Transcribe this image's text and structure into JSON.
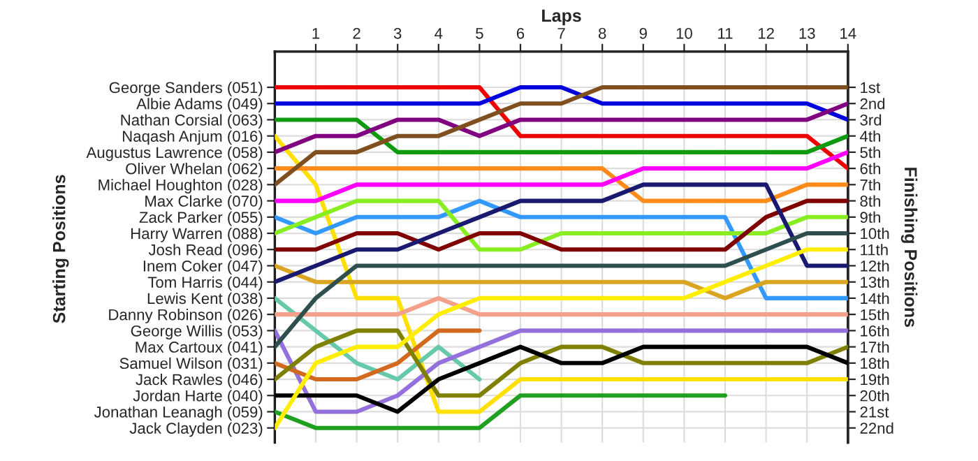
{
  "chart_data": {
    "type": "line",
    "xlabel": "Laps",
    "annotations": [
      "Starting Positions"
    ],
    "y2label": "Finishing Positions",
    "x": [
      0,
      1,
      2,
      3,
      4,
      5,
      6,
      7,
      8,
      9,
      10,
      11,
      12,
      13,
      14
    ],
    "xlim": [
      0,
      14
    ],
    "xticks": [
      1,
      2,
      3,
      4,
      5,
      6,
      7,
      8,
      9,
      10,
      11,
      12,
      13,
      14
    ],
    "y_categories": [
      "George Sanders (051)",
      "Albie Adams (049)",
      "Nathan Corsial (063)",
      "Naqash Anjum (016)",
      "Augustus Lawrence (058)",
      "Oliver Whelan (062)",
      "Michael Houghton (028)",
      "Max Clarke (070)",
      "Zack Parker (055)",
      "Harry Warren (088)",
      "Josh Read (096)",
      "Inem Coker (047)",
      "Tom Harris (044)",
      "Lewis Kent (038)",
      "Danny Robinson (026)",
      "George Willis (053)",
      "Max Cartoux (041)",
      "Samuel Wilson (031)",
      "Jack Rawles (046)",
      "Jordan Harte (040)",
      "Jonathan Leanagh (059)",
      "Jack Clayden (023)"
    ],
    "y2lim": [
      22.9,
      -1.2
    ],
    "y2ticks": [
      {
        "value": 1,
        "label": "1st"
      },
      {
        "value": 2,
        "label": "2nd"
      },
      {
        "value": 3,
        "label": "3rd"
      },
      {
        "value": 4,
        "label": "4th"
      },
      {
        "value": 5,
        "label": "5th"
      },
      {
        "value": 6,
        "label": "6th"
      },
      {
        "value": 7,
        "label": "7th"
      },
      {
        "value": 8,
        "label": "8th"
      },
      {
        "value": 9,
        "label": "9th"
      },
      {
        "value": 10,
        "label": "10th"
      },
      {
        "value": 11,
        "label": "11th"
      },
      {
        "value": 12,
        "label": "12th"
      },
      {
        "value": 13,
        "label": "13th"
      },
      {
        "value": 14,
        "label": "14th"
      },
      {
        "value": 15,
        "label": "15th"
      },
      {
        "value": 16,
        "label": "16th"
      },
      {
        "value": 17,
        "label": "17th"
      },
      {
        "value": 18,
        "label": "18th"
      },
      {
        "value": 19,
        "label": "19th"
      },
      {
        "value": 20,
        "label": "20th"
      },
      {
        "value": 21,
        "label": "21st"
      },
      {
        "value": 22,
        "label": "22nd"
      }
    ],
    "grid": true,
    "marker": "none",
    "line_style": "solid",
    "series": [
      {
        "axis": "y2",
        "color": "#ee0000",
        "values": [
          1,
          1,
          1,
          1,
          1,
          1,
          4,
          4,
          4,
          4,
          4,
          4,
          4,
          4,
          6
        ]
      },
      {
        "axis": "y2",
        "color": "#0000dd",
        "values": [
          2,
          2,
          2,
          2,
          2,
          2,
          1,
          1,
          2,
          2,
          2,
          2,
          2,
          2,
          3
        ]
      },
      {
        "axis": "y2",
        "color": "#109a10",
        "values": [
          3,
          3,
          3,
          5,
          5,
          5,
          5,
          5,
          5,
          5,
          5,
          5,
          5,
          5,
          4
        ]
      },
      {
        "axis": "y2",
        "color": "#ffe000",
        "values": [
          4,
          7,
          14,
          14,
          21,
          21,
          19,
          19,
          19,
          19,
          19,
          19,
          19,
          19,
          19
        ]
      },
      {
        "axis": "y2",
        "color": "#800080",
        "values": [
          5,
          4,
          4,
          3,
          3,
          4,
          3,
          3,
          3,
          3,
          3,
          3,
          3,
          3,
          2
        ]
      },
      {
        "axis": "y2",
        "color": "#ff8c1a",
        "values": [
          6,
          6,
          6,
          6,
          6,
          6,
          6,
          6,
          6,
          8,
          8,
          8,
          8,
          7,
          7
        ]
      },
      {
        "axis": "y2",
        "color": "#7f4f1f",
        "values": [
          7,
          5,
          5,
          4,
          4,
          3,
          2,
          2,
          1,
          1,
          1,
          1,
          1,
          1,
          1
        ]
      },
      {
        "axis": "y2",
        "color": "#ff00ff",
        "values": [
          8,
          8,
          7,
          7,
          7,
          7,
          7,
          7,
          7,
          6,
          6,
          6,
          6,
          6,
          5
        ]
      },
      {
        "axis": "y2",
        "color": "#3399ff",
        "values": [
          9,
          10,
          9,
          9,
          9,
          8,
          9,
          9,
          9,
          9,
          9,
          9,
          14,
          14,
          14
        ]
      },
      {
        "axis": "y2",
        "color": "#88ee22",
        "values": [
          10,
          9,
          8,
          8,
          8,
          11,
          11,
          10,
          10,
          10,
          10,
          10,
          10,
          9,
          9
        ]
      },
      {
        "axis": "y2",
        "color": "#800000",
        "values": [
          11,
          11,
          10,
          10,
          11,
          10,
          10,
          11,
          11,
          11,
          11,
          11,
          9,
          8,
          8
        ]
      },
      {
        "axis": "y2",
        "color": "#daa520",
        "values": [
          12,
          13,
          13,
          13,
          13,
          13,
          13,
          13,
          13,
          13,
          13,
          14,
          13,
          13,
          13
        ]
      },
      {
        "axis": "y2",
        "color": "#191970",
        "values": [
          13,
          12,
          11,
          11,
          10,
          9,
          8,
          8,
          8,
          7,
          7,
          7,
          7,
          12,
          12
        ]
      },
      {
        "axis": "y2",
        "color": "#66c9aa",
        "values": [
          14,
          16,
          18,
          19,
          17,
          19,
          null,
          null,
          null,
          null,
          null,
          null,
          null,
          null,
          null
        ]
      },
      {
        "axis": "y2",
        "color": "#f4a08a",
        "values": [
          15,
          15,
          15,
          15,
          14,
          15,
          15,
          15,
          15,
          15,
          15,
          15,
          15,
          15,
          15
        ]
      },
      {
        "axis": "y2",
        "color": "#9370db",
        "values": [
          16,
          21,
          21,
          20,
          18,
          17,
          16,
          16,
          16,
          16,
          16,
          16,
          16,
          16,
          16
        ]
      },
      {
        "axis": "y2",
        "color": "#2f4f4f",
        "values": [
          17,
          14,
          12,
          12,
          12,
          12,
          12,
          12,
          12,
          12,
          12,
          12,
          11,
          10,
          10
        ]
      },
      {
        "axis": "y2",
        "color": "#d2691e",
        "values": [
          18,
          19,
          19,
          18,
          16,
          16,
          null,
          null,
          null,
          null,
          null,
          null,
          null,
          null,
          null
        ]
      },
      {
        "axis": "y2",
        "color": "#808000",
        "values": [
          19,
          17,
          16,
          16,
          20,
          20,
          18,
          17,
          17,
          18,
          18,
          18,
          18,
          18,
          17
        ]
      },
      {
        "axis": "y2",
        "color": "#000000",
        "values": [
          20,
          20,
          20,
          21,
          19,
          18,
          17,
          18,
          18,
          17,
          17,
          17,
          17,
          17,
          18
        ]
      },
      {
        "axis": "y2",
        "color": "#1fa01f",
        "values": [
          21,
          22,
          22,
          22,
          22,
          22,
          20,
          20,
          20,
          20,
          20,
          20,
          null,
          null,
          null
        ]
      },
      {
        "axis": "y2",
        "color": "#ffee00",
        "values": [
          22,
          18,
          17,
          17,
          15,
          14,
          14,
          14,
          14,
          14,
          14,
          13,
          12,
          11,
          11
        ]
      }
    ]
  }
}
